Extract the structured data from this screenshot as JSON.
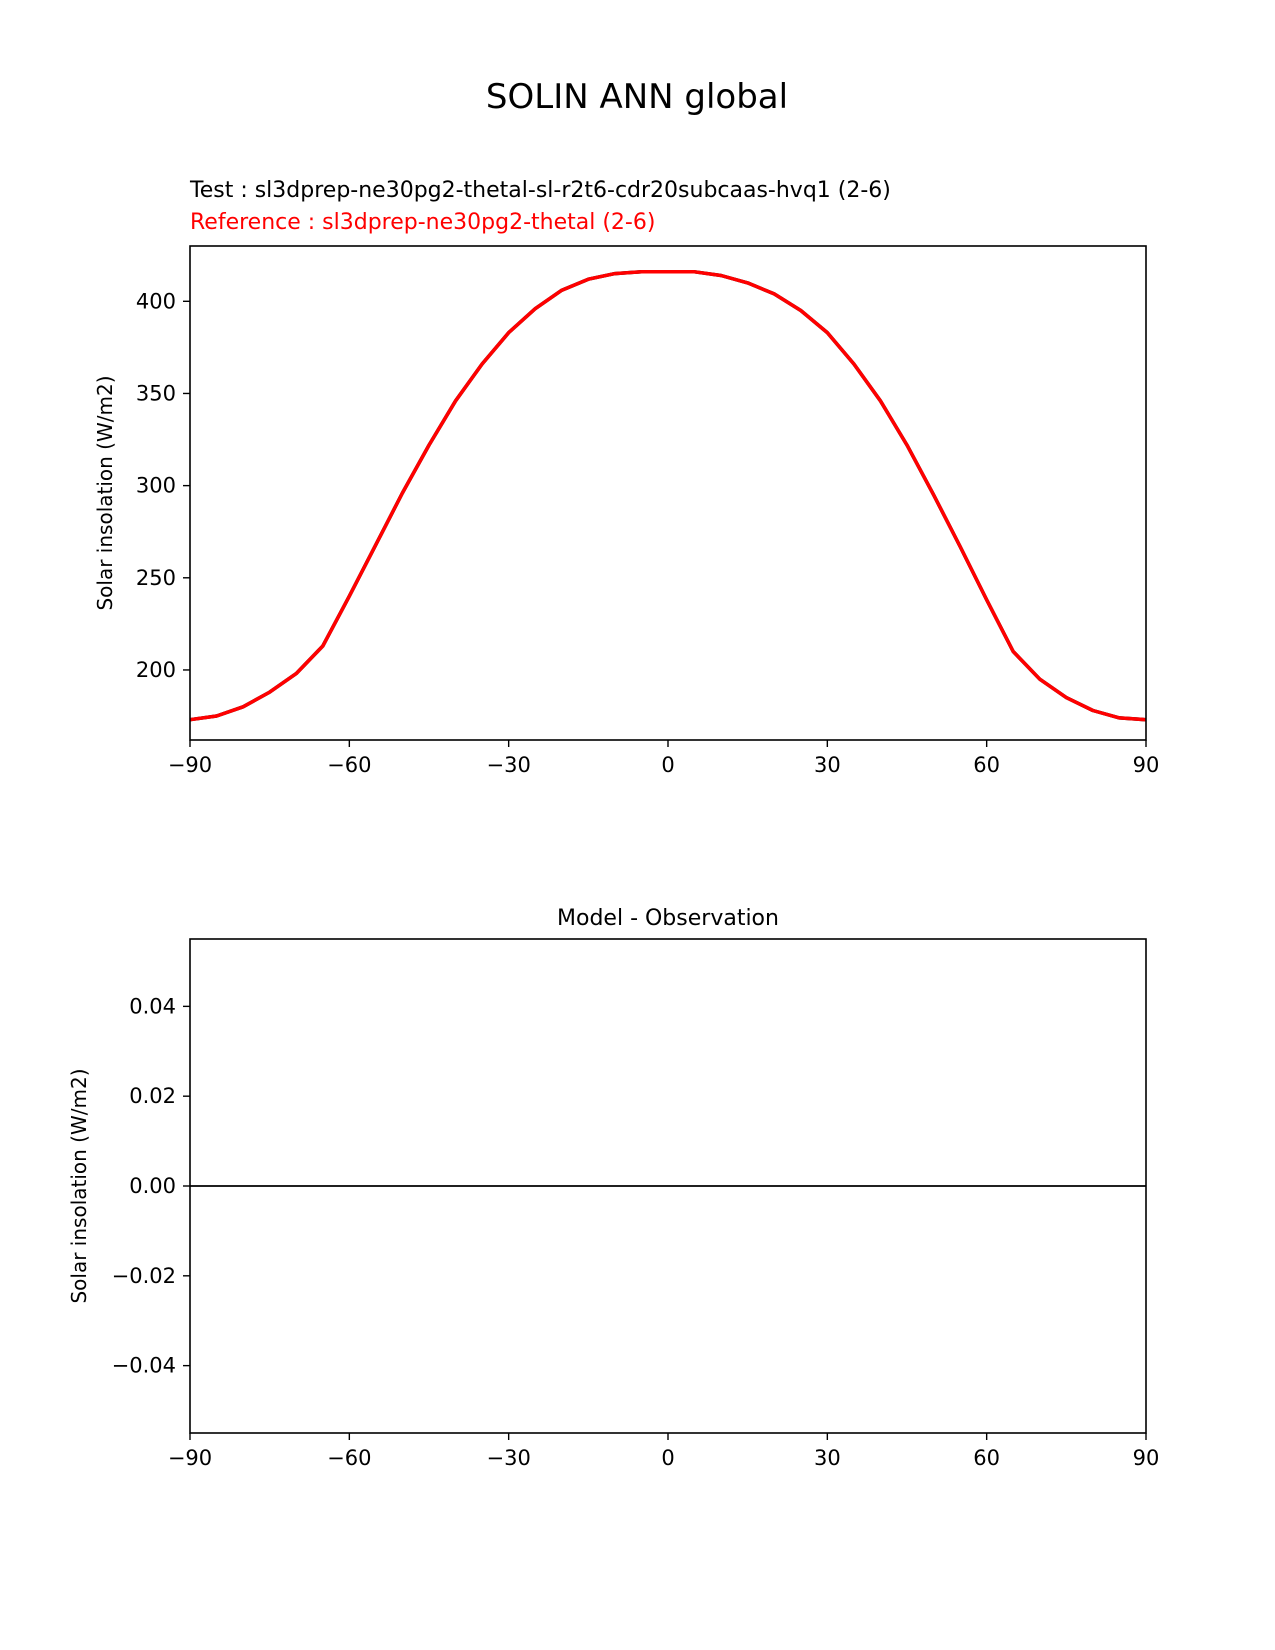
{
  "figure": {
    "title": "SOLIN ANN global",
    "test_label": "Test : sl3dprep-ne30pg2-thetal-sl-r2t6-cdr20subcaas-hvq1 (2-6)",
    "reference_label": "Reference : sl3dprep-ne30pg2-thetal (2-6)"
  },
  "colors": {
    "test_line": "#000000",
    "reference_line": "#ff0000",
    "axes": "#000000",
    "zero_line": "#808080"
  },
  "chart_data": [
    {
      "type": "line",
      "title": "",
      "xlabel": "",
      "ylabel": "Solar insolation (W/m2)",
      "xlim": [
        -90,
        90
      ],
      "ylim": [
        162,
        430
      ],
      "xticks": [
        -90,
        -60,
        -30,
        0,
        30,
        60,
        90
      ],
      "xtick_labels": [
        "−90",
        "−60",
        "−30",
        "0",
        "30",
        "60",
        "90"
      ],
      "yticks": [
        200,
        250,
        300,
        350,
        400
      ],
      "ytick_labels": [
        "200",
        "250",
        "300",
        "350",
        "400"
      ],
      "grid": false,
      "series": [
        {
          "name": "Test",
          "color": "#000000",
          "x": [
            -90,
            -85,
            -80,
            -75,
            -70,
            -65,
            -60,
            -55,
            -50,
            -45,
            -40,
            -35,
            -30,
            -25,
            -20,
            -15,
            -10,
            -5,
            0,
            5,
            10,
            15,
            20,
            25,
            30,
            35,
            40,
            45,
            50,
            55,
            60,
            65,
            70,
            75,
            80,
            85,
            90
          ],
          "y": [
            173,
            175,
            180,
            188,
            198,
            213,
            240,
            268,
            296,
            322,
            346,
            366,
            383,
            396,
            406,
            412,
            415,
            416,
            416,
            416,
            414,
            410,
            404,
            395,
            383,
            366,
            346,
            322,
            295,
            267,
            238,
            210,
            195,
            185,
            178,
            174,
            173
          ]
        },
        {
          "name": "Reference",
          "color": "#ff0000",
          "x": [
            -90,
            -85,
            -80,
            -75,
            -70,
            -65,
            -60,
            -55,
            -50,
            -45,
            -40,
            -35,
            -30,
            -25,
            -20,
            -15,
            -10,
            -5,
            0,
            5,
            10,
            15,
            20,
            25,
            30,
            35,
            40,
            45,
            50,
            55,
            60,
            65,
            70,
            75,
            80,
            85,
            90
          ],
          "y": [
            173,
            175,
            180,
            188,
            198,
            213,
            240,
            268,
            296,
            322,
            346,
            366,
            383,
            396,
            406,
            412,
            415,
            416,
            416,
            416,
            414,
            410,
            404,
            395,
            383,
            366,
            346,
            322,
            295,
            267,
            238,
            210,
            195,
            185,
            178,
            174,
            173
          ]
        }
      ]
    },
    {
      "type": "line",
      "title": "Model - Observation",
      "xlabel": "",
      "ylabel": "Solar insolation (W/m2)",
      "xlim": [
        -90,
        90
      ],
      "ylim": [
        -0.055,
        0.055
      ],
      "xticks": [
        -90,
        -60,
        -30,
        0,
        30,
        60,
        90
      ],
      "xtick_labels": [
        "−90",
        "−60",
        "−30",
        "0",
        "30",
        "60",
        "90"
      ],
      "yticks": [
        -0.04,
        -0.02,
        0.0,
        0.02,
        0.04
      ],
      "ytick_labels": [
        "−0.04",
        "−0.02",
        "0.00",
        "0.02",
        "0.04"
      ],
      "grid": false,
      "zero_line": 0,
      "series": [
        {
          "color": "#000000",
          "x": [
            -90,
            90
          ],
          "y": [
            0,
            0
          ]
        }
      ]
    }
  ]
}
